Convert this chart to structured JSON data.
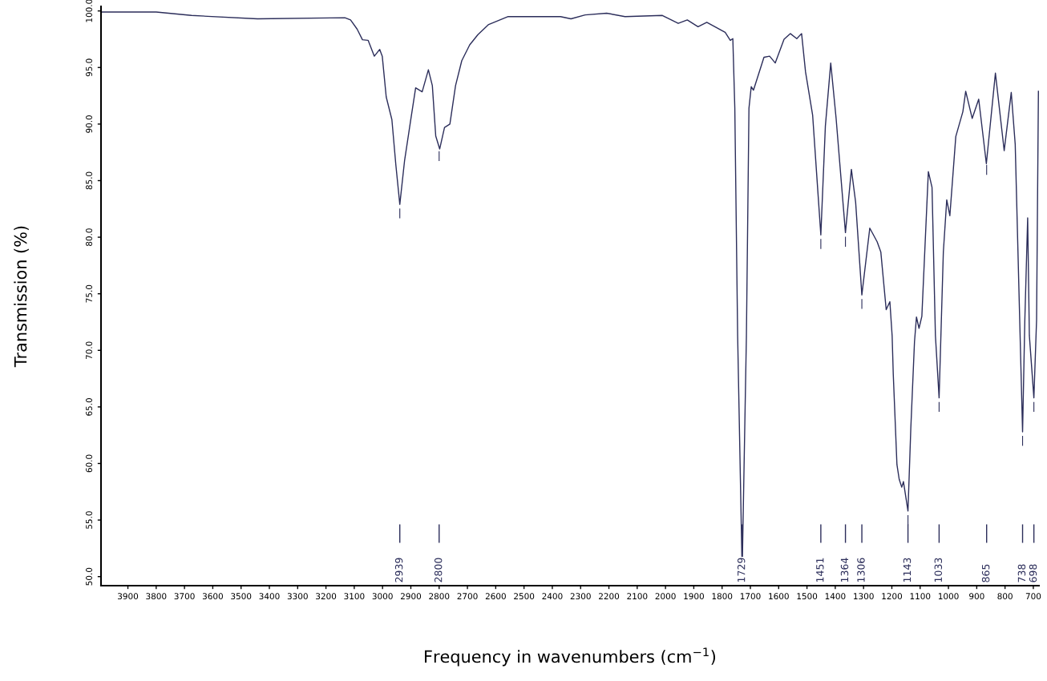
{
  "chart_data": {
    "type": "line",
    "xlabel": "Frequency in wavenumbers (cm$^{−1}$)",
    "ylabel": "Transmission (%)",
    "xlim": [
      3995,
      680
    ],
    "ylim": [
      49.2,
      100.4
    ],
    "xticks": [
      3900,
      3800,
      3700,
      3600,
      3500,
      3400,
      3300,
      3200,
      3100,
      3000,
      2900,
      2800,
      2700,
      2600,
      2500,
      2400,
      2300,
      2200,
      2100,
      2000,
      1900,
      1800,
      1700,
      1600,
      1500,
      1400,
      1300,
      1200,
      1100,
      1000,
      900,
      800,
      700
    ],
    "yticks": [
      {
        "value": 50,
        "label": "50.0"
      },
      {
        "value": 55,
        "label": "55.0"
      },
      {
        "value": 60,
        "label": "60.0"
      },
      {
        "value": 65,
        "label": "65.0"
      },
      {
        "value": 70,
        "label": "70.0"
      },
      {
        "value": 75,
        "label": "75.0"
      },
      {
        "value": 80,
        "label": "80.0"
      },
      {
        "value": 85,
        "label": "85.0"
      },
      {
        "value": 90,
        "label": "90.0"
      },
      {
        "value": 95,
        "label": "95.0"
      },
      {
        "value": 100,
        "label": "100.0"
      }
    ],
    "grid": false,
    "legend": false,
    "marker": "none",
    "line_style": "solid",
    "series": [
      {
        "color": "#2b2d5a",
        "x": [
          3995,
          3800,
          3675,
          3442,
          3133,
          3113,
          3090,
          3071,
          3051,
          3029,
          3010,
          3001,
          2987,
          2967,
          2953,
          2939,
          2922,
          2902,
          2883,
          2860,
          2838,
          2824,
          2812,
          2798,
          2781,
          2762,
          2742,
          2720,
          2692,
          2663,
          2625,
          2556,
          2371,
          2334,
          2284,
          2208,
          2143,
          2011,
          1955,
          1923,
          1885,
          1854,
          1789,
          1771,
          1762,
          1755,
          1745,
          1729,
          1714,
          1705,
          1697,
          1689,
          1652,
          1632,
          1612,
          1581,
          1559,
          1536,
          1519,
          1505,
          1480,
          1451,
          1435,
          1416,
          1397,
          1364,
          1343,
          1328,
          1306,
          1278,
          1252,
          1239,
          1220,
          1207,
          1199,
          1195,
          1182,
          1174,
          1165,
          1159,
          1143,
          1133,
          1120,
          1113,
          1104,
          1094,
          1071,
          1058,
          1046,
          1033,
          1025,
          1018,
          1006,
          995,
          974,
          949,
          939,
          916,
          893,
          866,
          834,
          803,
          778,
          764,
          738,
          730,
          720,
          714,
          698,
          688.5,
          682
        ],
        "values": [
          99.9,
          99.9,
          99.6,
          99.3,
          99.4,
          99.2,
          98.4,
          97.45,
          97.4,
          96.0,
          96.6,
          96.0,
          92.4,
          90.4,
          86.4,
          82.9,
          86.8,
          90.1,
          93.2,
          92.85,
          94.8,
          93.4,
          88.95,
          87.8,
          89.7,
          90.0,
          93.4,
          95.6,
          97.0,
          97.9,
          98.8,
          99.5,
          99.5,
          99.3,
          99.65,
          99.8,
          99.5,
          99.6,
          98.9,
          99.2,
          98.6,
          99.0,
          98.1,
          97.4,
          97.55,
          91.4,
          71.3,
          50.4,
          71.3,
          91.4,
          93.3,
          93.0,
          95.9,
          96.0,
          95.4,
          97.5,
          98.0,
          97.55,
          98.0,
          94.6,
          90.8,
          80.2,
          89.8,
          95.4,
          90.5,
          80.4,
          86.0,
          83.1,
          74.9,
          80.8,
          79.6,
          78.7,
          73.6,
          74.3,
          71.3,
          67.9,
          59.9,
          58.6,
          57.9,
          58.4,
          55.8,
          63.1,
          70.75,
          72.95,
          71.95,
          73.0,
          85.8,
          84.4,
          71.3,
          65.8,
          72.7,
          78.7,
          83.3,
          81.9,
          88.9,
          91.1,
          92.9,
          90.5,
          92.2,
          86.5,
          94.5,
          87.65,
          92.8,
          88.2,
          62.8,
          72.7,
          81.7,
          71.3,
          65.8,
          72.7,
          92.9
        ]
      }
    ],
    "annotations": [
      {
        "text": "2939",
        "x": 2939
      },
      {
        "text": "2800",
        "x": 2800
      },
      {
        "text": "1729",
        "x": 1729
      },
      {
        "text": "1451",
        "x": 1451
      },
      {
        "text": "1364",
        "x": 1364
      },
      {
        "text": "1306",
        "x": 1306
      },
      {
        "text": "1143",
        "x": 1143
      },
      {
        "text": "1033",
        "x": 1033
      },
      {
        "text": "865",
        "x": 865
      },
      {
        "text": "738",
        "x": 738
      },
      {
        "text": "698",
        "x": 698
      }
    ]
  }
}
